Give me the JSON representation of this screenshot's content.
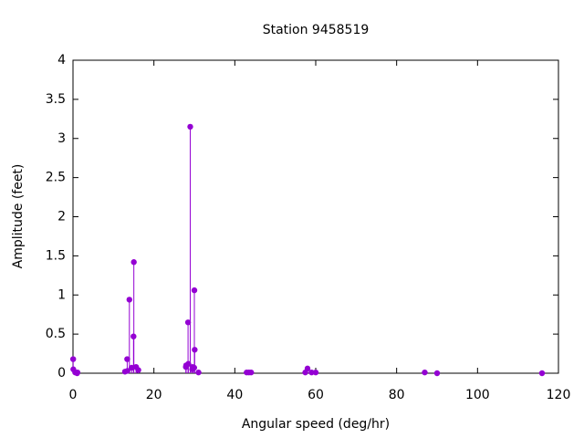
{
  "chart_data": {
    "type": "stem",
    "title": "Station 9458519",
    "x_label": "Angular speed (deg/hr)",
    "y_label": "Amplitude (feet)",
    "series": [
      {
        "color": "#9400d3",
        "x": [
          0.04,
          0.08,
          0.54,
          1.02,
          1.1,
          12.85,
          13.4,
          13.47,
          13.94,
          14.5,
          14.96,
          15.04,
          15.59,
          16.14,
          27.9,
          27.97,
          28.44,
          28.51,
          28.98,
          29.46,
          29.53,
          29.96,
          30.0,
          30.08,
          31.02,
          42.93,
          43.48,
          44.03,
          57.42,
          57.97,
          58.98,
          60.0,
          86.95,
          90.0,
          115.94
        ],
        "values": [
          0.18,
          0.05,
          0.01,
          0.0,
          0.01,
          0.02,
          0.18,
          0.03,
          0.94,
          0.07,
          0.47,
          1.42,
          0.08,
          0.04,
          0.08,
          0.1,
          0.65,
          0.12,
          3.15,
          0.05,
          0.08,
          0.07,
          1.06,
          0.3,
          0.01,
          0.01,
          0.01,
          0.01,
          0.01,
          0.06,
          0.01,
          0.01,
          0.01,
          0.0,
          0.0
        ]
      }
    ],
    "xlim": [
      0,
      120
    ],
    "xticks": [
      0,
      20,
      40,
      60,
      80,
      100,
      120
    ],
    "ylim": [
      0,
      4
    ],
    "yticks": [
      0,
      0.5,
      1,
      1.5,
      2,
      2.5,
      3,
      3.5,
      4
    ],
    "grid": false
  }
}
